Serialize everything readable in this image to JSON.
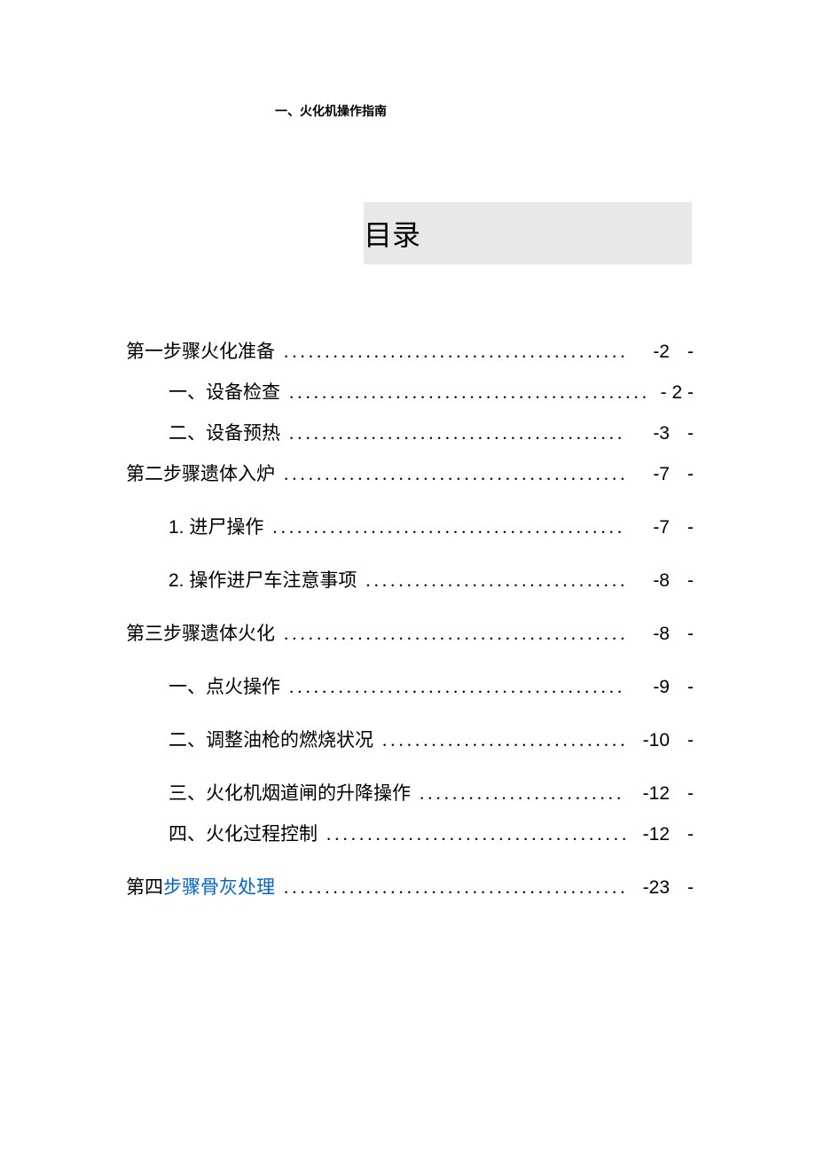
{
  "header": {
    "text": "一、火化机操作指南"
  },
  "toc": {
    "title": "目录",
    "entries": [
      {
        "level": 0,
        "text": "第一步骤火化准备",
        "page": "-2",
        "link": false,
        "gap_after": "small"
      },
      {
        "level": 1,
        "text": "一、设备检查",
        "page": "- 2 -",
        "link": false,
        "gap_after": "small",
        "no_suffix_dash": true
      },
      {
        "level": 1,
        "text": "二、设备预热",
        "page": "-3",
        "link": false,
        "gap_after": "small"
      },
      {
        "level": 0,
        "text": "第二步骤遗体入炉",
        "page": "-7",
        "link": false,
        "gap_after": "medium"
      },
      {
        "level": 1,
        "text": "1. 进尸操作",
        "page": "-7",
        "link": false,
        "gap_after": "medium"
      },
      {
        "level": 1,
        "text": "2. 操作进尸车注意事项",
        "page": "-8",
        "link": false,
        "gap_after": "medium"
      },
      {
        "level": 0,
        "text": "第三步骤遗体火化",
        "page": "-8",
        "link": false,
        "gap_after": "medium"
      },
      {
        "level": 1,
        "text": "一、点火操作",
        "page": "-9",
        "link": false,
        "gap_after": "medium"
      },
      {
        "level": 1,
        "text": "二、调整油枪的燃烧状况",
        "page": "-10",
        "link": false,
        "gap_after": "medium"
      },
      {
        "level": 1,
        "text": "三、火化机烟道闸的升降操作",
        "page": "-12",
        "link": false,
        "gap_after": "small"
      },
      {
        "level": 1,
        "text": "四、火化过程控制",
        "page": "-12",
        "link": false,
        "gap_after": "medium"
      },
      {
        "level": 0,
        "prefix": "第四",
        "text": "步骤骨灰处理",
        "page": "-23",
        "link": true,
        "gap_after": "none"
      }
    ]
  },
  "style": {
    "background_color": "#ffffff",
    "text_color": "#000000",
    "link_color": "#0066cc",
    "title_box_bg": "#e8e8e8",
    "body_fontsize": 21,
    "title_fontsize": 32,
    "header_fontsize": 14
  }
}
